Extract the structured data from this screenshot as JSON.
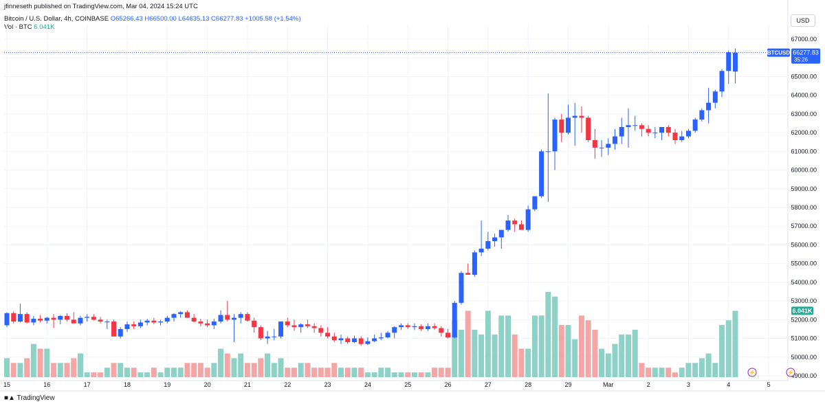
{
  "header": {
    "published_by": "jfinneseth published on TradingView.com, Mar 04, 2024 15:24 UTC"
  },
  "legend": {
    "symbol_desc": "Bitcoin / U.S. Dollar, 4h, COINBASE",
    "open": "O65266.43",
    "high": "H66500.00",
    "low": "L64635.13",
    "close": "C66277.83",
    "change": "+1005.58 (+1.54%)",
    "vol_label": "Vol · BTC",
    "vol_value": "6.041K"
  },
  "currency_button": "USD",
  "price_badge": {
    "symbol": "BTCUSD",
    "price": "66277.83",
    "countdown": "35:26"
  },
  "volume_badge": "6.041K",
  "footer": {
    "brand": "TradingView"
  },
  "colors": {
    "up": "#2962ff",
    "down": "#f23645",
    "vol_up": "#8ed1c6",
    "vol_down": "#f4a6a6"
  },
  "chart_data": {
    "type": "candlestick",
    "symbol": "BTCUSD",
    "interval": "4h",
    "exchange": "COINBASE",
    "price_range": [
      49000,
      67000
    ],
    "y_ticks": [
      49000,
      50000,
      51000,
      52000,
      53000,
      54000,
      55000,
      56000,
      57000,
      58000,
      59000,
      60000,
      61000,
      62000,
      63000,
      64000,
      65000,
      66000,
      67000
    ],
    "y_tick_labels": [
      "49000.00",
      "50000.00",
      "51000.00",
      "52000.00",
      "53000.00",
      "54000.00",
      "55000.00",
      "56000.00",
      "57000.00",
      "58000.00",
      "59000.00",
      "60000.00",
      "61000.00",
      "62000.00",
      "63000.00",
      "64000.00",
      "65000.00",
      "66000.00",
      "67000.00"
    ],
    "x_ticks": [
      {
        "label": "15",
        "bar": 0
      },
      {
        "label": "16",
        "bar": 6
      },
      {
        "label": "17",
        "bar": 12
      },
      {
        "label": "18",
        "bar": 18
      },
      {
        "label": "19",
        "bar": 24
      },
      {
        "label": "20",
        "bar": 30
      },
      {
        "label": "21",
        "bar": 36
      },
      {
        "label": "22",
        "bar": 42
      },
      {
        "label": "23",
        "bar": 48
      },
      {
        "label": "24",
        "bar": 54
      },
      {
        "label": "25",
        "bar": 60
      },
      {
        "label": "26",
        "bar": 66
      },
      {
        "label": "27",
        "bar": 72
      },
      {
        "label": "28",
        "bar": 78
      },
      {
        "label": "29",
        "bar": 84
      },
      {
        "label": "Mar",
        "bar": 90
      },
      {
        "label": "2",
        "bar": 96
      },
      {
        "label": "3",
        "bar": 102
      },
      {
        "label": "4",
        "bar": 108
      },
      {
        "label": "5",
        "bar": 114
      }
    ],
    "volume_max": 20,
    "candles": [
      [
        51700,
        52400,
        51600,
        52350,
        4
      ],
      [
        52350,
        52450,
        51800,
        51900,
        3
      ],
      [
        51900,
        52850,
        51850,
        52300,
        3
      ],
      [
        52300,
        52400,
        51800,
        51850,
        4
      ],
      [
        51850,
        52200,
        51700,
        52050,
        7
      ],
      [
        52050,
        52250,
        51850,
        51950,
        6
      ],
      [
        51950,
        52150,
        51800,
        52100,
        6
      ],
      [
        52100,
        52300,
        51550,
        52000,
        3
      ],
      [
        52000,
        52250,
        51750,
        52200,
        3
      ],
      [
        52200,
        52350,
        51900,
        52000,
        3
      ],
      [
        52000,
        52400,
        51850,
        51800,
        4
      ],
      [
        51800,
        52200,
        51700,
        52100,
        5
      ],
      [
        52100,
        52300,
        51900,
        52150,
        1
      ],
      [
        52150,
        52300,
        51950,
        52000,
        1
      ],
      [
        52000,
        52150,
        51800,
        51900,
        1
      ],
      [
        51900,
        52000,
        51500,
        51900,
        2
      ],
      [
        51900,
        52000,
        51200,
        51100,
        3
      ],
      [
        51100,
        51600,
        51000,
        51500,
        3
      ],
      [
        51500,
        51900,
        51350,
        51750,
        2
      ],
      [
        51750,
        51900,
        51500,
        51650,
        2
      ],
      [
        51650,
        52000,
        51550,
        51850,
        1
      ],
      [
        51850,
        52050,
        51700,
        51950,
        1
      ],
      [
        51950,
        52100,
        51750,
        51850,
        2
      ],
      [
        51850,
        52000,
        51700,
        51900,
        1
      ],
      [
        51900,
        52200,
        51800,
        52100,
        2
      ],
      [
        52100,
        52350,
        51900,
        52300,
        2
      ],
      [
        52300,
        52450,
        52100,
        52400,
        2
      ],
      [
        52400,
        52500,
        52200,
        52100,
        3
      ],
      [
        52100,
        52300,
        51850,
        51900,
        3
      ],
      [
        51900,
        52050,
        51650,
        51800,
        3
      ],
      [
        51800,
        52000,
        51600,
        51700,
        2
      ],
      [
        51700,
        52050,
        51500,
        51900,
        3
      ],
      [
        51900,
        52500,
        51800,
        52250,
        6
      ],
      [
        52250,
        53000,
        51900,
        52000,
        5
      ],
      [
        52000,
        52300,
        50800,
        52100,
        4
      ],
      [
        52100,
        52400,
        51800,
        52300,
        5
      ],
      [
        52300,
        52400,
        51900,
        51950,
        3
      ],
      [
        51950,
        52100,
        51300,
        51600,
        3
      ],
      [
        51600,
        51700,
        50900,
        51000,
        4
      ],
      [
        51000,
        51400,
        50700,
        51100,
        5
      ],
      [
        51100,
        51500,
        50900,
        51100,
        3
      ],
      [
        51100,
        51900,
        51000,
        51900,
        4
      ],
      [
        51900,
        52100,
        51600,
        51700,
        2
      ],
      [
        51700,
        52000,
        51400,
        51600,
        2
      ],
      [
        51600,
        51800,
        51300,
        51750,
        3
      ],
      [
        51750,
        52000,
        51550,
        51650,
        3
      ],
      [
        51650,
        51800,
        51300,
        51550,
        2
      ],
      [
        51550,
        51700,
        51100,
        51300,
        2
      ],
      [
        51300,
        51600,
        51000,
        51100,
        2
      ],
      [
        51100,
        51300,
        50800,
        50900,
        3
      ],
      [
        50900,
        51200,
        50700,
        51000,
        2
      ],
      [
        51000,
        51100,
        50700,
        50800,
        2
      ],
      [
        50800,
        51150,
        50750,
        51000,
        2
      ],
      [
        51000,
        51100,
        50600,
        50700,
        2
      ],
      [
        50700,
        51050,
        50650,
        50850,
        1
      ],
      [
        50850,
        51200,
        50800,
        51000,
        1
      ],
      [
        51000,
        51300,
        50900,
        51050,
        2
      ],
      [
        51050,
        51400,
        51000,
        51300,
        2
      ],
      [
        51300,
        51650,
        51000,
        51600,
        1
      ],
      [
        51600,
        51800,
        51450,
        51700,
        1
      ],
      [
        51700,
        51800,
        51500,
        51600,
        1
      ],
      [
        51600,
        51800,
        51450,
        51650,
        1
      ],
      [
        51650,
        51750,
        51400,
        51500,
        1
      ],
      [
        51500,
        51800,
        51400,
        51650,
        1
      ],
      [
        51650,
        51800,
        51450,
        51550,
        2
      ],
      [
        51550,
        51650,
        51100,
        51300,
        2
      ],
      [
        51300,
        51500,
        51000,
        51050,
        2
      ],
      [
        51050,
        53000,
        51000,
        52900,
        12
      ],
      [
        52900,
        54600,
        52800,
        54500,
        10
      ],
      [
        54500,
        55000,
        54400,
        54400,
        14
      ],
      [
        54400,
        55700,
        54300,
        55600,
        10
      ],
      [
        55600,
        57300,
        55400,
        55800,
        9
      ],
      [
        55800,
        56700,
        55700,
        56200,
        14
      ],
      [
        56200,
        56600,
        55900,
        56400,
        9
      ],
      [
        56400,
        56800,
        55800,
        56800,
        13
      ],
      [
        56800,
        57600,
        56700,
        57300,
        13
      ],
      [
        57300,
        57400,
        56700,
        57100,
        9
      ],
      [
        57100,
        57300,
        56900,
        56800,
        6
      ],
      [
        56800,
        58100,
        56700,
        57900,
        6
      ],
      [
        57900,
        58600,
        57800,
        58600,
        13
      ],
      [
        58600,
        61100,
        58500,
        61000,
        13
      ],
      [
        61000,
        64100,
        58300,
        61000,
        18
      ],
      [
        61000,
        62800,
        60000,
        62700,
        17
      ],
      [
        62700,
        63000,
        61500,
        62000,
        11
      ],
      [
        62000,
        63500,
        61900,
        62800,
        11
      ],
      [
        62800,
        63600,
        61300,
        62900,
        8
      ],
      [
        62900,
        63400,
        62000,
        62800,
        13
      ],
      [
        62800,
        62900,
        61500,
        61600,
        12
      ],
      [
        61600,
        62200,
        60600,
        61200,
        10
      ],
      [
        61200,
        61600,
        60700,
        61200,
        6
      ],
      [
        61200,
        61700,
        60800,
        61400,
        5
      ],
      [
        61400,
        62200,
        61100,
        61800,
        7
      ],
      [
        61800,
        62800,
        61400,
        62300,
        9
      ],
      [
        62300,
        63300,
        61200,
        62400,
        9
      ],
      [
        62400,
        62900,
        62100,
        62400,
        10
      ],
      [
        62400,
        62500,
        61800,
        62200,
        3
      ],
      [
        62200,
        62400,
        61800,
        62000,
        2
      ],
      [
        62000,
        62300,
        61700,
        62000,
        2
      ],
      [
        62000,
        62300,
        61600,
        62300,
        2
      ],
      [
        62300,
        62400,
        61800,
        62000,
        2
      ],
      [
        62000,
        62200,
        61400,
        61600,
        1
      ],
      [
        61600,
        62100,
        61500,
        61800,
        2
      ],
      [
        61800,
        62200,
        61700,
        62100,
        3
      ],
      [
        62100,
        62800,
        62000,
        62700,
        3
      ],
      [
        62700,
        63300,
        62600,
        63200,
        4
      ],
      [
        63200,
        64400,
        62500,
        63600,
        5
      ],
      [
        63600,
        64300,
        63300,
        64200,
        3
      ],
      [
        64200,
        65400,
        63900,
        65300,
        11
      ],
      [
        65300,
        66400,
        64600,
        66300,
        12
      ],
      [
        65266.43,
        66500,
        64635.13,
        66277.83,
        14
      ]
    ]
  }
}
